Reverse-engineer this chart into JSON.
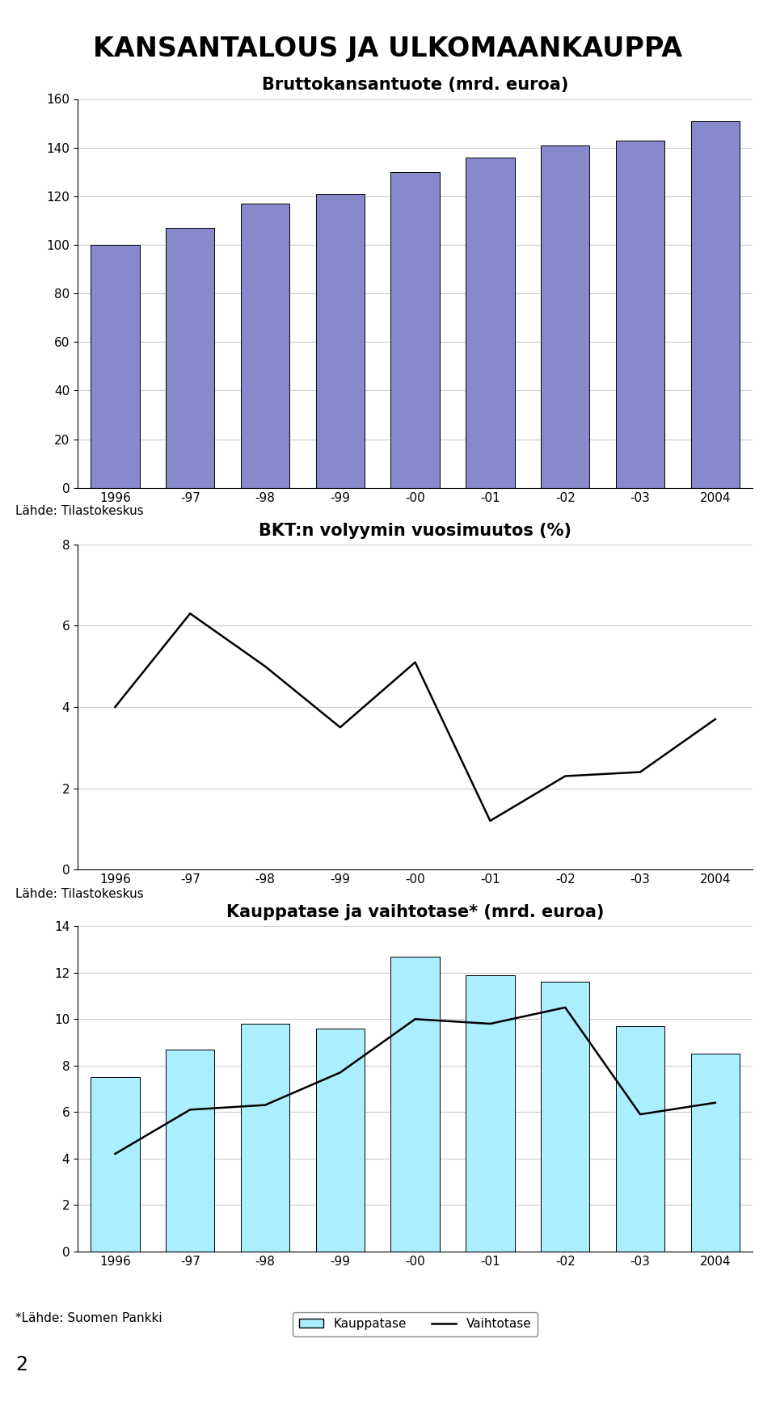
{
  "main_title": "KANSANTALOUS JA ULKOMAANKAUPPA",
  "chart1_title": "Bruttokansantuote (mrd. euroa)",
  "chart1_categories": [
    "1996",
    "-97",
    "-98",
    "-99",
    "-00",
    "-01",
    "-02",
    "-03",
    "2004"
  ],
  "chart1_values": [
    100,
    107,
    117,
    121,
    130,
    136,
    141,
    143,
    151
  ],
  "chart1_ylim": [
    0,
    160
  ],
  "chart1_yticks": [
    0,
    20,
    40,
    60,
    80,
    100,
    120,
    140,
    160
  ],
  "chart1_bar_color": "#8888cc",
  "chart1_source": "Lähde: Tilastokeskus",
  "chart2_title": "BKT:n volyymin vuosimuutos (%)",
  "chart2_categories": [
    "1996",
    "-97",
    "-98",
    "-99",
    "-00",
    "-01",
    "-02",
    "-03",
    "2004"
  ],
  "chart2_values": [
    4.0,
    6.3,
    5.0,
    3.5,
    5.1,
    1.2,
    2.3,
    2.4,
    3.7
  ],
  "chart2_ylim": [
    0,
    8
  ],
  "chart2_yticks": [
    0,
    2,
    4,
    6,
    8
  ],
  "chart2_line_color": "#000000",
  "chart2_source": "Lähde: Tilastokeskus",
  "chart3_title": "Kauppatase ja vaihtotase* (mrd. euroa)",
  "chart3_categories": [
    "1996",
    "-97",
    "-98",
    "-99",
    "-00",
    "-01",
    "-02",
    "-03",
    "2004"
  ],
  "chart3_bar_values": [
    7.5,
    8.7,
    9.8,
    9.6,
    12.7,
    11.9,
    11.6,
    9.7,
    8.5
  ],
  "chart3_line_values": [
    4.2,
    6.1,
    6.3,
    7.7,
    10.0,
    9.8,
    10.5,
    5.9,
    6.4
  ],
  "chart3_ylim": [
    0,
    14
  ],
  "chart3_yticks": [
    0,
    2,
    4,
    6,
    8,
    10,
    12,
    14
  ],
  "chart3_bar_color": "#aaeeff",
  "chart3_line_color": "#000000",
  "chart3_bar_label": "Kauppatase",
  "chart3_line_label": "Vaihtotase",
  "chart3_source": "*Lähde: Suomen Pankki",
  "chart3_footnote": "2",
  "bg_color": "#ffffff",
  "grid_color": "#cccccc",
  "axis_color": "#000000",
  "text_color": "#000000",
  "main_title_fontsize": 24,
  "chart_title_fontsize": 15,
  "tick_fontsize": 11,
  "source_fontsize": 11,
  "legend_fontsize": 11
}
